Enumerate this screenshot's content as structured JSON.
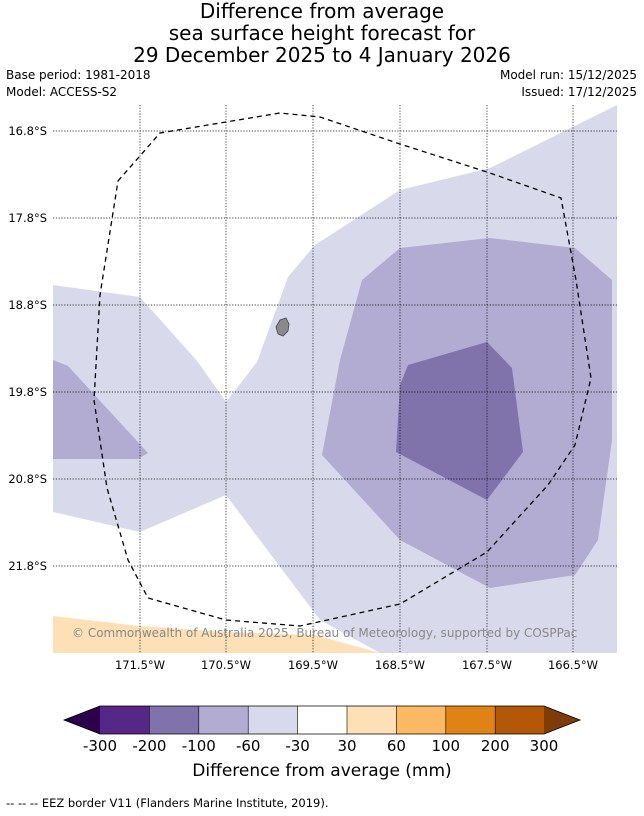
{
  "title": {
    "line1": "Difference from average",
    "line2": "sea surface height forecast for",
    "line3": "29 December 2025 to 4 January 2026"
  },
  "info": {
    "base_period": "Base period: 1981-2018",
    "model": "Model: ACCESS-S2",
    "model_run": "Model run: 15/12/2025",
    "issued": "Issued: 17/12/2025"
  },
  "map": {
    "lat_labels": [
      "16.8°S",
      "17.8°S",
      "18.8°S",
      "19.8°S",
      "20.8°S",
      "21.8°S"
    ],
    "lon_labels": [
      "171.5°W",
      "170.5°W",
      "169.5°W",
      "168.5°W",
      "167.5°W",
      "166.5°W"
    ],
    "copyright": "© Commonwealth of Australia 2025, Bureau of Meteorology, supported by COSPPac",
    "colors": {
      "minus_300_lower": "#2d004b",
      "minus_300_200": "#542788",
      "minus_200_100": "#8073ac",
      "minus_100_60": "#b2abd2",
      "minus_60_30": "#d8daeb",
      "minus_30_30": "#ffffff",
      "plus_30_60": "#fee0b6",
      "plus_60_100": "#fdb863",
      "plus_100_200": "#e08214",
      "plus_200_300": "#b35806",
      "plus_300_upper": "#7f3b08",
      "land": "#8a8a8a"
    }
  },
  "colorbar": {
    "tick_labels": [
      "-300",
      "-200",
      "-100",
      "-60",
      "-30",
      "30",
      "60",
      "100",
      "200",
      "300"
    ],
    "title": "Difference from average (mm)"
  },
  "footer": {
    "legend_text": "--  --  -- EEZ border V11 (Flanders Marine Institute, 2019)."
  }
}
